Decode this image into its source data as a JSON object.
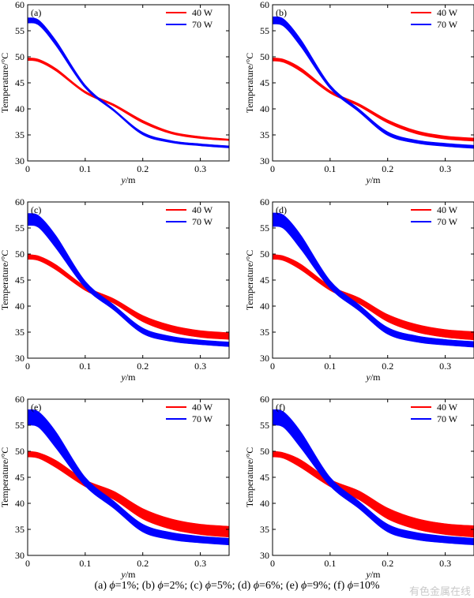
{
  "chart_data": [
    {
      "type": "area",
      "panel_label": "(a)",
      "xlabel_var": "y",
      "xlabel_unit": "/m",
      "ylabel": "Temperature/°C",
      "xlim": [
        0,
        0.35
      ],
      "ylim": [
        30,
        60
      ],
      "xticks": [
        0,
        0.1,
        0.2,
        0.3
      ],
      "xtick_labels": [
        "0",
        "0.1",
        "0.2",
        "0.3"
      ],
      "yticks": [
        30,
        35,
        40,
        45,
        50,
        55,
        60
      ],
      "ytick_labels": [
        "30",
        "35",
        "40",
        "45",
        "50",
        "55",
        "60"
      ],
      "legend_position": "top-right",
      "x": [
        0,
        0.02,
        0.05,
        0.1,
        0.15,
        0.2,
        0.25,
        0.3,
        0.35
      ],
      "series": [
        {
          "name": "40 W",
          "color": "#ff0000",
          "lower": [
            49.3,
            49.0,
            47.2,
            43.0,
            40.5,
            37.3,
            35.2,
            34.3,
            33.9
          ],
          "upper": [
            49.8,
            49.5,
            47.7,
            43.4,
            40.9,
            37.8,
            35.6,
            34.7,
            34.2
          ]
        },
        {
          "name": "70 W",
          "color": "#0000ff",
          "lower": [
            56.5,
            56.0,
            52.0,
            44.0,
            39.5,
            35.0,
            33.5,
            32.9,
            32.5
          ],
          "upper": [
            57.5,
            57.0,
            53.0,
            44.6,
            39.9,
            35.5,
            33.9,
            33.3,
            32.9
          ]
        }
      ]
    },
    {
      "type": "area",
      "panel_label": "(b)",
      "xlabel_var": "y",
      "xlabel_unit": "/m",
      "ylabel": "Temperature/°C",
      "xlim": [
        0,
        0.35
      ],
      "ylim": [
        30,
        60
      ],
      "xticks": [
        0,
        0.1,
        0.2,
        0.3
      ],
      "xtick_labels": [
        "0",
        "0.1",
        "0.2",
        "0.3"
      ],
      "yticks": [
        30,
        35,
        40,
        45,
        50,
        55,
        60
      ],
      "ytick_labels": [
        "30",
        "35",
        "40",
        "45",
        "50",
        "55",
        "60"
      ],
      "legend_position": "top-right",
      "x": [
        0,
        0.02,
        0.05,
        0.1,
        0.15,
        0.2,
        0.25,
        0.3,
        0.35
      ],
      "series": [
        {
          "name": "40 W",
          "color": "#ff0000",
          "lower": [
            49.2,
            48.9,
            47.1,
            43.0,
            40.5,
            37.3,
            35.2,
            34.2,
            33.8
          ],
          "upper": [
            49.8,
            49.5,
            47.8,
            43.5,
            41.0,
            37.9,
            35.8,
            34.8,
            34.4
          ]
        },
        {
          "name": "70 W",
          "color": "#0000ff",
          "lower": [
            56.3,
            55.8,
            51.8,
            43.9,
            39.4,
            34.9,
            33.4,
            32.8,
            32.4
          ],
          "upper": [
            57.7,
            57.2,
            53.2,
            44.6,
            40.0,
            35.6,
            34.0,
            33.4,
            33.0
          ]
        }
      ]
    },
    {
      "type": "area",
      "panel_label": "(c)",
      "xlabel_var": "y",
      "xlabel_unit": "/m",
      "ylabel": "Temperature/°C",
      "xlim": [
        0,
        0.35
      ],
      "ylim": [
        30,
        60
      ],
      "xticks": [
        0,
        0.1,
        0.2,
        0.3
      ],
      "xtick_labels": [
        "0",
        "0.1",
        "0.2",
        "0.3"
      ],
      "yticks": [
        30,
        35,
        40,
        45,
        50,
        55,
        60
      ],
      "ytick_labels": [
        "30",
        "35",
        "40",
        "45",
        "50",
        "55",
        "60"
      ],
      "legend_position": "top-right",
      "x": [
        0,
        0.02,
        0.05,
        0.1,
        0.15,
        0.2,
        0.25,
        0.3,
        0.35
      ],
      "series": [
        {
          "name": "40 W",
          "color": "#ff0000",
          "lower": [
            49.0,
            48.7,
            46.9,
            43.0,
            40.5,
            37.0,
            35.0,
            34.0,
            33.6
          ],
          "upper": [
            49.9,
            49.6,
            47.9,
            43.8,
            41.4,
            38.2,
            36.3,
            35.3,
            34.9
          ]
        },
        {
          "name": "70 W",
          "color": "#0000ff",
          "lower": [
            55.5,
            55.0,
            51.0,
            43.5,
            39.2,
            34.7,
            33.2,
            32.6,
            32.2
          ],
          "upper": [
            57.8,
            57.3,
            53.4,
            44.8,
            40.2,
            35.8,
            34.2,
            33.5,
            33.1
          ]
        }
      ]
    },
    {
      "type": "area",
      "panel_label": "(d)",
      "xlabel_var": "y",
      "xlabel_unit": "/m",
      "ylabel": "Temperature/°C",
      "xlim": [
        0,
        0.35
      ],
      "ylim": [
        30,
        60
      ],
      "xticks": [
        0,
        0.1,
        0.2,
        0.3
      ],
      "xtick_labels": [
        "0",
        "0.1",
        "0.2",
        "0.3"
      ],
      "yticks": [
        30,
        35,
        40,
        45,
        50,
        55,
        60
      ],
      "ytick_labels": [
        "30",
        "35",
        "40",
        "45",
        "50",
        "55",
        "60"
      ],
      "legend_position": "top-right",
      "x": [
        0,
        0.02,
        0.05,
        0.1,
        0.15,
        0.2,
        0.25,
        0.3,
        0.35
      ],
      "series": [
        {
          "name": "40 W",
          "color": "#ff0000",
          "lower": [
            49.0,
            48.7,
            46.9,
            43.0,
            40.5,
            37.0,
            35.0,
            34.0,
            33.5
          ],
          "upper": [
            49.9,
            49.6,
            48.0,
            43.9,
            41.6,
            38.4,
            36.5,
            35.5,
            35.1
          ]
        },
        {
          "name": "70 W",
          "color": "#0000ff",
          "lower": [
            55.3,
            54.8,
            50.8,
            43.4,
            39.1,
            34.6,
            33.1,
            32.5,
            32.1
          ],
          "upper": [
            57.9,
            57.4,
            53.5,
            44.9,
            40.3,
            35.9,
            34.3,
            33.6,
            33.2
          ]
        }
      ]
    },
    {
      "type": "area",
      "panel_label": "(e)",
      "xlabel_var": "y",
      "xlabel_unit": "/m",
      "ylabel": "Temperature/°C",
      "xlim": [
        0,
        0.35
      ],
      "ylim": [
        30,
        60
      ],
      "xticks": [
        0,
        0.1,
        0.2,
        0.3
      ],
      "xtick_labels": [
        "0",
        "0.1",
        "0.2",
        "0.3"
      ],
      "yticks": [
        30,
        35,
        40,
        45,
        50,
        55,
        60
      ],
      "ytick_labels": [
        "30",
        "35",
        "40",
        "45",
        "50",
        "55",
        "60"
      ],
      "legend_position": "top-right",
      "x": [
        0,
        0.02,
        0.05,
        0.1,
        0.15,
        0.2,
        0.25,
        0.3,
        0.35
      ],
      "series": [
        {
          "name": "40 W",
          "color": "#ff0000",
          "lower": [
            48.9,
            48.6,
            46.8,
            43.2,
            40.7,
            37.0,
            35.0,
            34.0,
            33.5
          ],
          "upper": [
            50.0,
            49.7,
            48.2,
            44.5,
            42.3,
            39.0,
            37.0,
            36.0,
            35.6
          ]
        },
        {
          "name": "70 W",
          "color": "#0000ff",
          "lower": [
            55.0,
            54.5,
            50.5,
            43.3,
            39.0,
            34.5,
            33.0,
            32.4,
            32.0
          ],
          "upper": [
            58.0,
            57.5,
            53.6,
            45.0,
            40.4,
            36.0,
            34.4,
            33.7,
            33.3
          ]
        }
      ]
    },
    {
      "type": "area",
      "panel_label": "(f)",
      "xlabel_var": "y",
      "xlabel_unit": "/m",
      "ylabel": "Temperature/°C",
      "xlim": [
        0,
        0.35
      ],
      "ylim": [
        30,
        60
      ],
      "xticks": [
        0,
        0.1,
        0.2,
        0.3
      ],
      "xtick_labels": [
        "0",
        "0.1",
        "0.2",
        "0.3"
      ],
      "yticks": [
        30,
        35,
        40,
        45,
        50,
        55,
        60
      ],
      "ytick_labels": [
        "30",
        "35",
        "40",
        "45",
        "50",
        "55",
        "60"
      ],
      "legend_position": "top-right",
      "x": [
        0,
        0.02,
        0.05,
        0.1,
        0.15,
        0.2,
        0.25,
        0.3,
        0.35
      ],
      "series": [
        {
          "name": "40 W",
          "color": "#ff0000",
          "lower": [
            48.9,
            48.6,
            46.8,
            43.2,
            40.7,
            37.0,
            35.0,
            34.0,
            33.5
          ],
          "upper": [
            50.0,
            49.7,
            48.3,
            44.6,
            42.4,
            39.1,
            37.1,
            36.1,
            35.7
          ]
        },
        {
          "name": "70 W",
          "color": "#0000ff",
          "lower": [
            55.0,
            54.5,
            50.5,
            43.3,
            39.0,
            34.5,
            33.0,
            32.4,
            32.0
          ],
          "upper": [
            58.0,
            57.5,
            53.6,
            45.0,
            40.4,
            36.0,
            34.4,
            33.7,
            33.3
          ]
        }
      ]
    }
  ],
  "caption": {
    "parts": [
      {
        "label": "(a) ",
        "var": "ϕ",
        "value": "=1%; "
      },
      {
        "label": "(b) ",
        "var": "ϕ",
        "value": "=2%; "
      },
      {
        "label": "(c) ",
        "var": "ϕ",
        "value": "=5%; "
      },
      {
        "label": "(d) ",
        "var": "ϕ",
        "value": "=6%; "
      },
      {
        "label": "(e) ",
        "var": "ϕ",
        "value": "=9%; "
      },
      {
        "label": "(f) ",
        "var": "ϕ",
        "value": "=10%"
      }
    ]
  },
  "watermark": "有色金属在线"
}
